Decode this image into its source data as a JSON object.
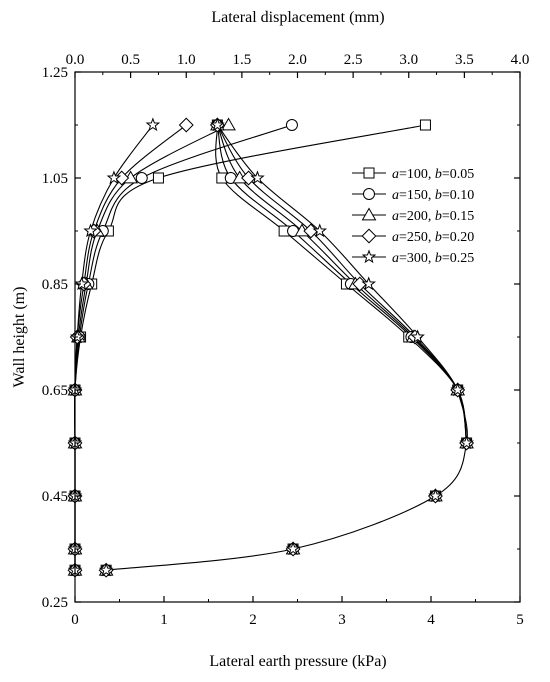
{
  "chart_data": {
    "type": "line",
    "x_top": {
      "label": "Lateral displacement (mm)",
      "range": [
        0,
        4.0
      ],
      "ticks": [
        "0.0",
        "0.5",
        "1.0",
        "1.5",
        "2.0",
        "2.5",
        "3.0",
        "3.5",
        "4.0"
      ]
    },
    "x_bottom": {
      "label": "Lateral earth pressure (kPa)",
      "range": [
        0,
        5
      ],
      "ticks": [
        "0",
        "1",
        "2",
        "3",
        "4",
        "5"
      ]
    },
    "y": {
      "label": "Wall height (m)",
      "range": [
        0.25,
        1.25
      ],
      "ticks": [
        "0.25",
        "0.45",
        "0.65",
        "0.85",
        "1.05",
        "1.25"
      ]
    },
    "legend": {
      "placement": "top-right",
      "entries": [
        {
          "marker": "square",
          "a": "100",
          "b": "0.05"
        },
        {
          "marker": "circle",
          "a": "150",
          "b": "0.10"
        },
        {
          "marker": "triangle",
          "a": "200",
          "b": "0.15"
        },
        {
          "marker": "diamond",
          "a": "250",
          "b": "0.20"
        },
        {
          "marker": "star",
          "a": "300",
          "b": "0.25"
        }
      ]
    },
    "displacement_series": [
      {
        "marker": "square",
        "points": [
          [
            3.15,
            1.15
          ],
          [
            0.75,
            1.05
          ],
          [
            0.3,
            0.95
          ],
          [
            0.15,
            0.85
          ],
          [
            0.05,
            0.75
          ],
          [
            0.0,
            0.65
          ],
          [
            0.0,
            0.55
          ],
          [
            0.0,
            0.45
          ],
          [
            0.0,
            0.35
          ],
          [
            0.0,
            0.31
          ]
        ]
      },
      {
        "marker": "circle",
        "points": [
          [
            1.95,
            1.15
          ],
          [
            0.6,
            1.05
          ],
          [
            0.25,
            0.95
          ],
          [
            0.12,
            0.85
          ],
          [
            0.04,
            0.75
          ],
          [
            0.0,
            0.65
          ],
          [
            0.0,
            0.55
          ],
          [
            0.0,
            0.45
          ],
          [
            0.0,
            0.35
          ],
          [
            0.0,
            0.31
          ]
        ]
      },
      {
        "marker": "triangle",
        "points": [
          [
            1.38,
            1.15
          ],
          [
            0.5,
            1.05
          ],
          [
            0.2,
            0.95
          ],
          [
            0.1,
            0.85
          ],
          [
            0.03,
            0.75
          ],
          [
            0.0,
            0.65
          ],
          [
            0.0,
            0.55
          ],
          [
            0.0,
            0.45
          ],
          [
            0.0,
            0.35
          ],
          [
            0.0,
            0.31
          ]
        ]
      },
      {
        "marker": "diamond",
        "points": [
          [
            1.0,
            1.15
          ],
          [
            0.42,
            1.05
          ],
          [
            0.17,
            0.95
          ],
          [
            0.08,
            0.85
          ],
          [
            0.02,
            0.75
          ],
          [
            0.0,
            0.65
          ],
          [
            0.0,
            0.55
          ],
          [
            0.0,
            0.45
          ],
          [
            0.0,
            0.35
          ],
          [
            0.0,
            0.31
          ]
        ]
      },
      {
        "marker": "star",
        "points": [
          [
            0.7,
            1.15
          ],
          [
            0.35,
            1.05
          ],
          [
            0.14,
            0.95
          ],
          [
            0.06,
            0.85
          ],
          [
            0.02,
            0.75
          ],
          [
            0.0,
            0.65
          ],
          [
            0.0,
            0.55
          ],
          [
            0.0,
            0.45
          ],
          [
            0.0,
            0.35
          ],
          [
            0.0,
            0.31
          ]
        ]
      }
    ],
    "pressure_series": [
      {
        "marker": "square",
        "points": [
          [
            1.6,
            1.15
          ],
          [
            1.65,
            1.05
          ],
          [
            2.35,
            0.95
          ],
          [
            3.05,
            0.85
          ],
          [
            3.75,
            0.75
          ]
        ]
      },
      {
        "marker": "circle",
        "points": [
          [
            1.6,
            1.15
          ],
          [
            1.75,
            1.05
          ],
          [
            2.45,
            0.95
          ],
          [
            3.1,
            0.85
          ],
          [
            3.78,
            0.75
          ]
        ]
      },
      {
        "marker": "triangle",
        "points": [
          [
            1.6,
            1.15
          ],
          [
            1.85,
            1.05
          ],
          [
            2.55,
            0.95
          ],
          [
            3.15,
            0.85
          ],
          [
            3.8,
            0.75
          ]
        ]
      },
      {
        "marker": "diamond",
        "points": [
          [
            1.6,
            1.15
          ],
          [
            1.95,
            1.05
          ],
          [
            2.65,
            0.95
          ],
          [
            3.2,
            0.85
          ],
          [
            3.82,
            0.75
          ]
        ]
      },
      {
        "marker": "star",
        "points": [
          [
            1.6,
            1.15
          ],
          [
            2.05,
            1.05
          ],
          [
            2.75,
            0.95
          ],
          [
            3.3,
            0.85
          ],
          [
            3.85,
            0.75
          ]
        ]
      }
    ],
    "pressure_common": [
      [
        4.3,
        0.65
      ],
      [
        4.4,
        0.55
      ],
      [
        4.05,
        0.45
      ],
      [
        2.45,
        0.35
      ],
      [
        0.35,
        0.31
      ]
    ]
  }
}
